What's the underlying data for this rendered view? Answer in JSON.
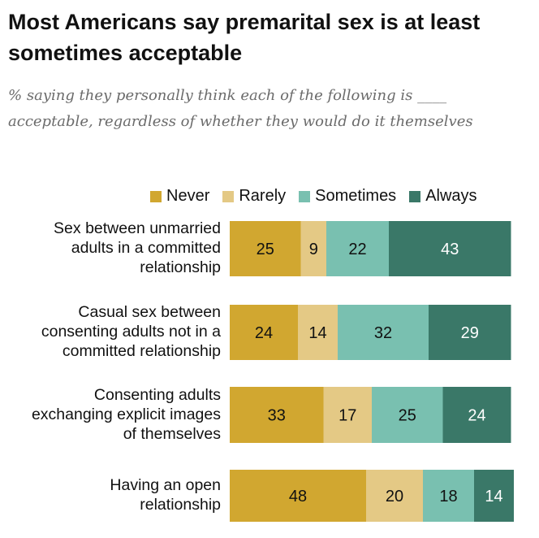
{
  "chart_data": {
    "type": "bar",
    "orientation": "horizontal",
    "stacked": true,
    "title": "Most Americans say premarital sex is at least sometimes acceptable",
    "subtitle": "% saying they personally think each of the following is ____ acceptable, regardless of whether they would do it themselves",
    "categories": [
      "Sex between unmarried adults in a committed relationship",
      "Casual sex between consenting adults not in a committed relationship",
      "Consenting adults exchanging explicit images of themselves",
      "Having an open relationship"
    ],
    "series": [
      {
        "name": "Never",
        "color": "#d1a730",
        "text_color": "#111111",
        "values": [
          25,
          24,
          33,
          48
        ]
      },
      {
        "name": "Rarely",
        "color": "#e4c985",
        "text_color": "#111111",
        "values": [
          9,
          14,
          17,
          20
        ]
      },
      {
        "name": "Sometimes",
        "color": "#79c0b0",
        "text_color": "#111111",
        "values": [
          22,
          32,
          25,
          18
        ]
      },
      {
        "name": "Always",
        "color": "#3a7868",
        "text_color": "#ffffff",
        "values": [
          43,
          29,
          24,
          14
        ]
      }
    ],
    "legend": "top",
    "grid": false,
    "xlim": [
      0,
      100
    ]
  }
}
